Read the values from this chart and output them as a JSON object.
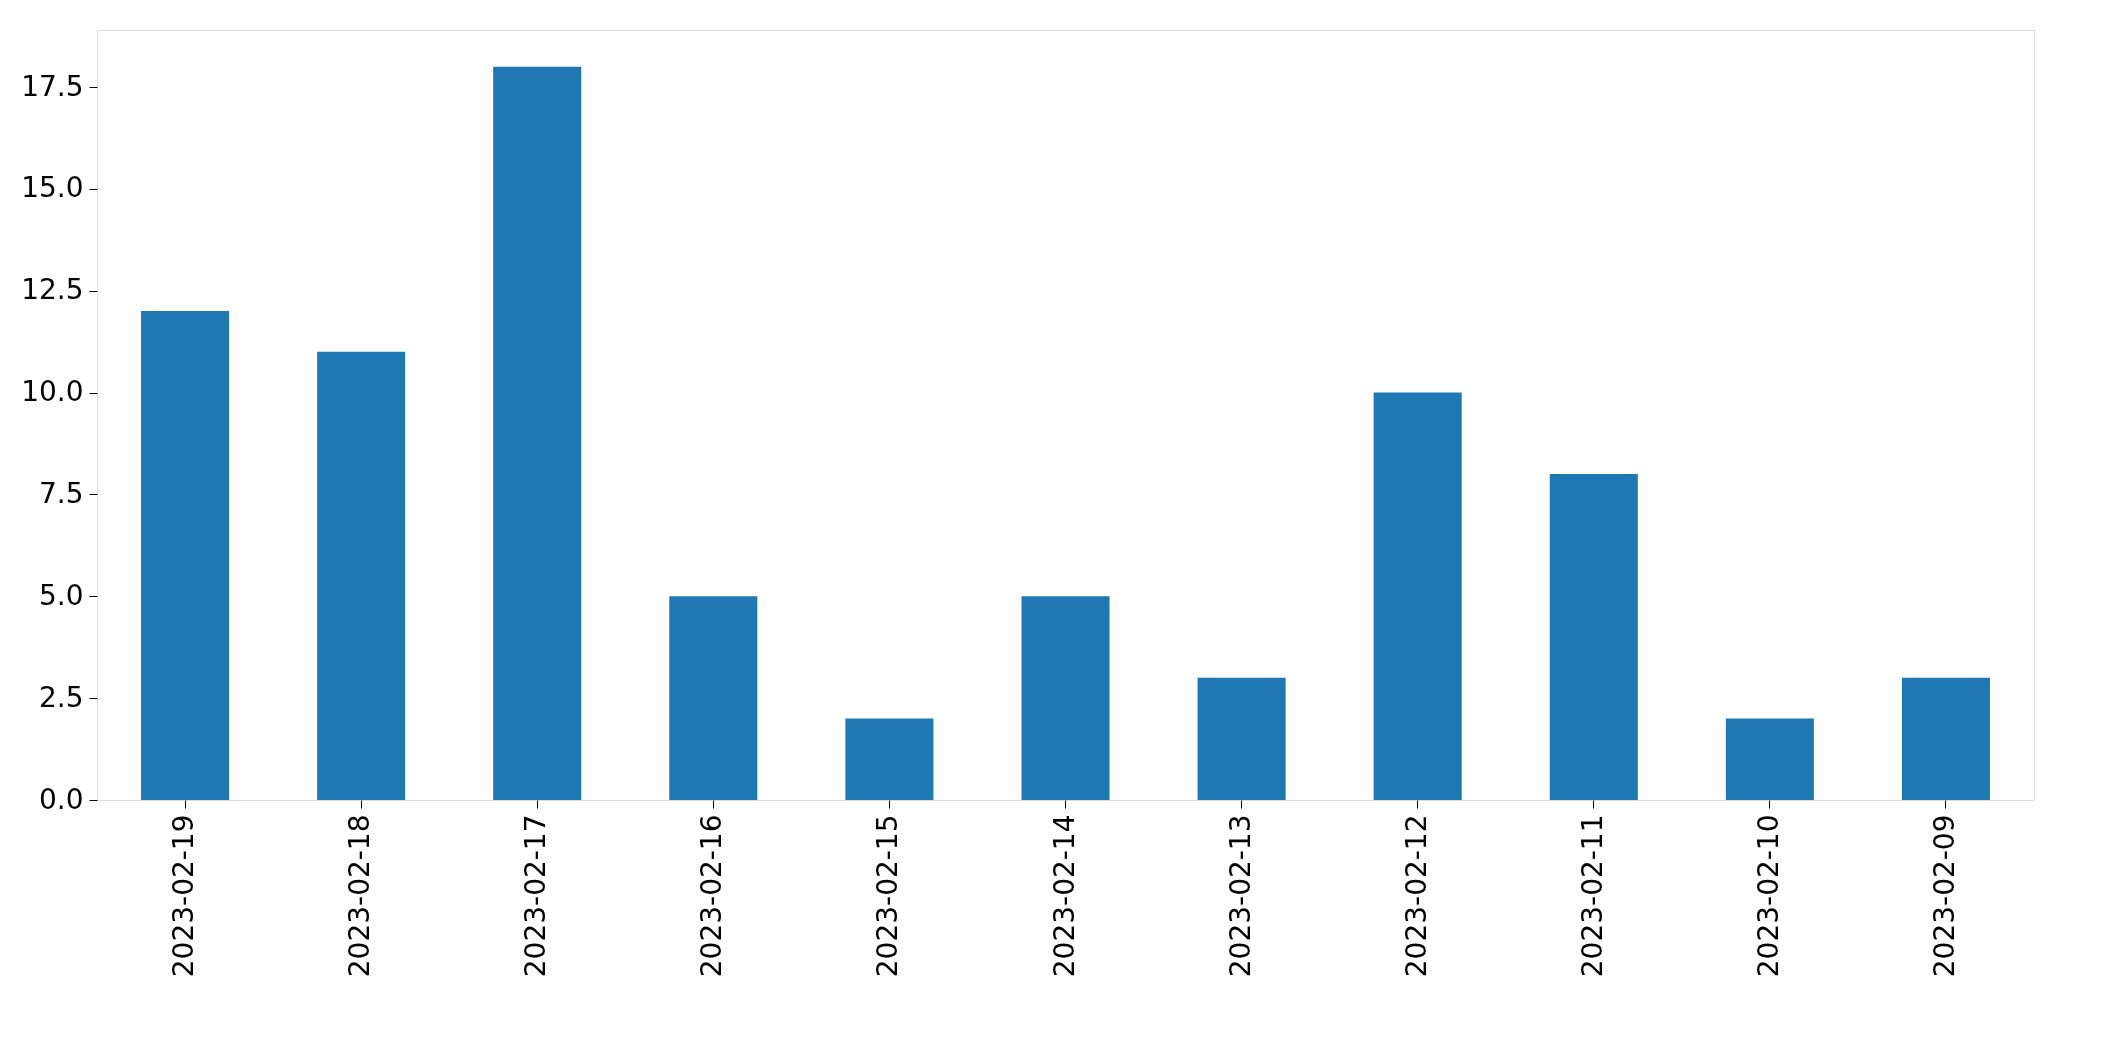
{
  "chart_data": {
    "type": "bar",
    "categories": [
      "2023-02-19",
      "2023-02-18",
      "2023-02-17",
      "2023-02-16",
      "2023-02-15",
      "2023-02-14",
      "2023-02-13",
      "2023-02-12",
      "2023-02-11",
      "2023-02-10",
      "2023-02-09"
    ],
    "values": [
      12,
      11,
      18,
      5,
      2,
      5,
      3,
      10,
      8,
      2,
      3
    ],
    "color": "#1f77b4",
    "ylim": [
      0,
      18.9
    ],
    "yticks": [
      {
        "value": 0,
        "label": "0.0"
      },
      {
        "value": 2.5,
        "label": "2.5"
      },
      {
        "value": 5,
        "label": "5.0"
      },
      {
        "value": 7.5,
        "label": "7.5"
      },
      {
        "value": 10,
        "label": "10.0"
      },
      {
        "value": 12.5,
        "label": "12.5"
      },
      {
        "value": 15,
        "label": "15.0"
      },
      {
        "value": 17.5,
        "label": "17.5"
      }
    ],
    "grid": false
  }
}
